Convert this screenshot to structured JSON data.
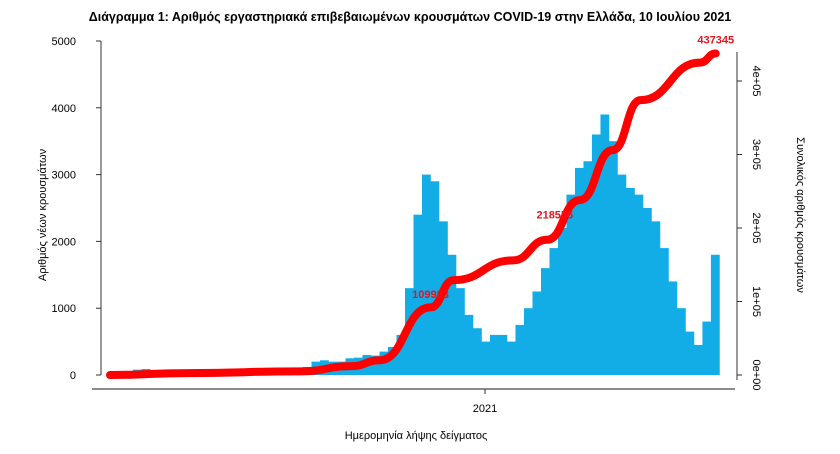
{
  "chart_data": {
    "type": "bar",
    "title": "Διάγραμμα 1: Αριθμός εργαστηριακά επιβεβαιωμένων κρουσμάτων COVID-19 στην Ελλάδα, 10 Ιουλίου 2021",
    "xlabel": "Ημερομηνία λήψης δείγματος",
    "ylabel": "Αριθμός νέων κρουσμάτων",
    "y2label": "Συνολικός αριθμός κρουσμάτων",
    "ylim": [
      0,
      5000
    ],
    "y2lim": [
      0,
      450000
    ],
    "yticks": [
      "0",
      "1000",
      "2000",
      "3000",
      "4000",
      "5000"
    ],
    "y2ticks": [
      "0e+00",
      "1e+05",
      "2e+05",
      "3e+05",
      "4e+05"
    ],
    "xticks": [
      "2021"
    ],
    "grid": false,
    "colors": {
      "bars": "#12ace6",
      "cumulative": "#ff0000",
      "annotation": "#e8141b"
    },
    "series": [
      {
        "type": "bar",
        "x": [
          "2020-02-24",
          "2020-03-02",
          "2020-03-09",
          "2020-03-16",
          "2020-03-23",
          "2020-03-30",
          "2020-04-06",
          "2020-04-13",
          "2020-04-20",
          "2020-04-27",
          "2020-05-04",
          "2020-05-11",
          "2020-05-18",
          "2020-05-25",
          "2020-06-01",
          "2020-06-08",
          "2020-06-15",
          "2020-06-22",
          "2020-06-29",
          "2020-07-06",
          "2020-07-13",
          "2020-07-20",
          "2020-07-27",
          "2020-08-03",
          "2020-08-10",
          "2020-08-17",
          "2020-08-24",
          "2020-08-31",
          "2020-09-07",
          "2020-09-14",
          "2020-09-21",
          "2020-09-28",
          "2020-10-05",
          "2020-10-12",
          "2020-10-19",
          "2020-10-26",
          "2020-11-02",
          "2020-11-09",
          "2020-11-16",
          "2020-11-23",
          "2020-11-30",
          "2020-12-07",
          "2020-12-14",
          "2020-12-21",
          "2020-12-28",
          "2021-01-04",
          "2021-01-11",
          "2021-01-18",
          "2021-01-25",
          "2021-02-01",
          "2021-02-08",
          "2021-02-15",
          "2021-02-22",
          "2021-03-01",
          "2021-03-08",
          "2021-03-15",
          "2021-03-22",
          "2021-03-29",
          "2021-04-05",
          "2021-04-12",
          "2021-04-19",
          "2021-04-26",
          "2021-05-03",
          "2021-05-10",
          "2021-05-17",
          "2021-05-24",
          "2021-05-31",
          "2021-06-07",
          "2021-06-14",
          "2021-06-21",
          "2021-06-28",
          "2021-07-05"
        ],
        "values": [
          10,
          30,
          60,
          80,
          90,
          70,
          50,
          40,
          20,
          15,
          10,
          15,
          10,
          10,
          15,
          20,
          20,
          25,
          30,
          30,
          25,
          30,
          50,
          120,
          200,
          220,
          200,
          200,
          250,
          260,
          300,
          290,
          350,
          420,
          600,
          1300,
          2400,
          3000,
          2900,
          2300,
          1800,
          1300,
          900,
          700,
          500,
          600,
          600,
          500,
          750,
          1000,
          1250,
          1600,
          1900,
          2200,
          2700,
          3100,
          3200,
          3600,
          3900,
          3500,
          3000,
          2800,
          2700,
          2500,
          2300,
          1900,
          1400,
          1000,
          650,
          450,
          800,
          1800
        ]
      },
      {
        "type": "line",
        "x": [
          "2020-02-26",
          "2020-04-30",
          "2020-08-01",
          "2020-09-12",
          "2020-10-05",
          "2020-11-16",
          "2020-12-05",
          "2021-01-23",
          "2021-02-20",
          "2021-03-19",
          "2021-04-15",
          "2021-05-08",
          "2021-06-26",
          "2021-07-09"
        ],
        "values": [
          0,
          2600,
          5000,
          12000,
          20000,
          92000,
          129000,
          156000,
          184000,
          238000,
          306000,
          374000,
          425000,
          437345
        ]
      }
    ],
    "annotations": [
      {
        "text": "109983",
        "x": "2020-11-16",
        "value": 109983
      },
      {
        "text": "218556",
        "x": "2021-03-05",
        "value": 218556
      },
      {
        "text": "437345",
        "x": "2021-07-09",
        "value": 437345
      }
    ]
  }
}
